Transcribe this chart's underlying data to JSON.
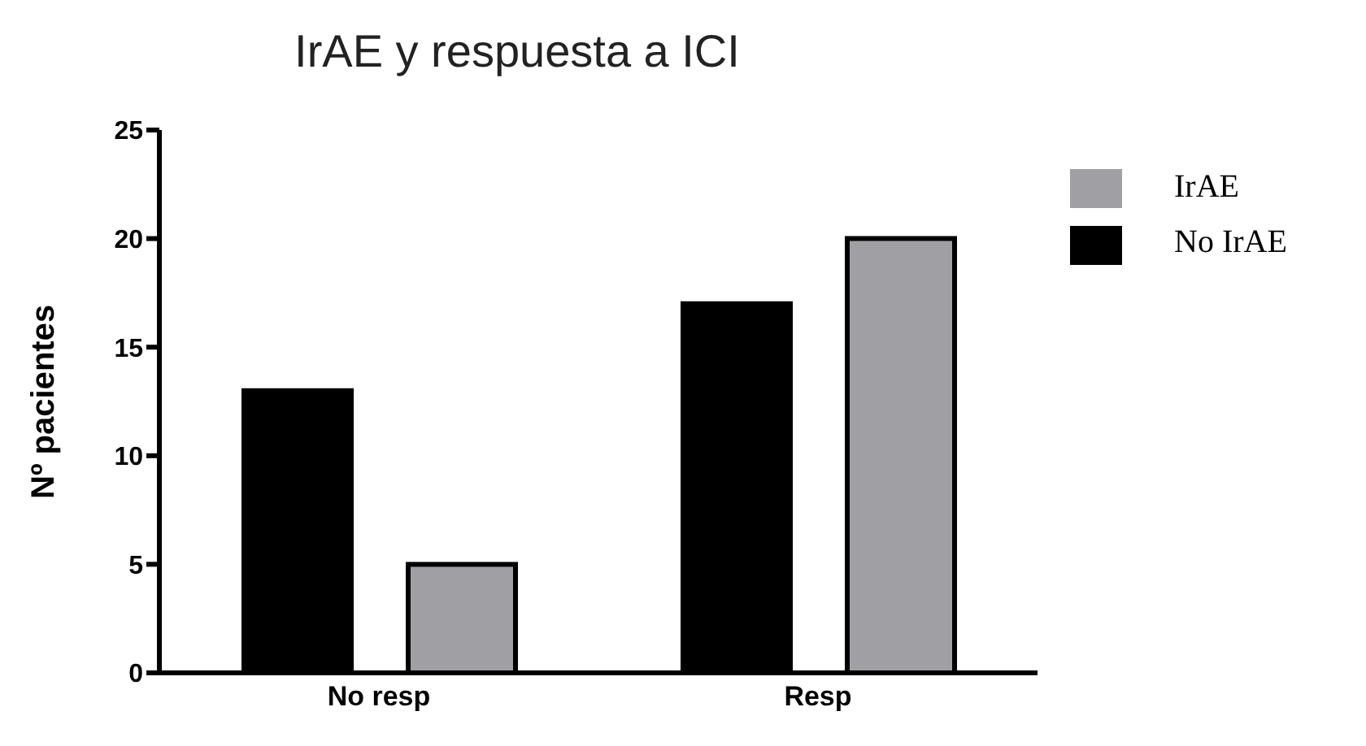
{
  "chart_data": {
    "type": "bar",
    "title": "IrAE y respuesta a ICI",
    "ylabel": "Nº pacientes",
    "categories": [
      "No resp",
      "Resp"
    ],
    "series": [
      {
        "name": "No IrAE",
        "color": "#000000",
        "values": [
          13,
          17
        ]
      },
      {
        "name": "IrAE",
        "color": "#a0a0a4",
        "values": [
          5,
          20
        ]
      }
    ],
    "ylim": [
      0,
      25
    ],
    "yticks": [
      0,
      5,
      10,
      15,
      20,
      25
    ],
    "grid": false,
    "legend": "top right"
  }
}
